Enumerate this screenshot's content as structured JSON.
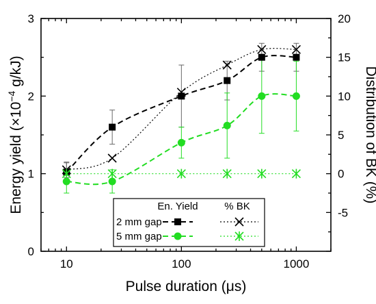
{
  "chart_data": {
    "type": "line",
    "xlabel": "Pulse duration (μs)",
    "x_scale": "log",
    "xlim": [
      6,
      2000
    ],
    "x_ticks": [
      10,
      100,
      1000
    ],
    "x_tick_labels": [
      "10",
      "100",
      "1000"
    ],
    "y_left": {
      "label_parts": [
        "Energy yield (×10",
        "−4",
        " g/kJ)"
      ],
      "lim": [
        0,
        3
      ],
      "ticks": [
        0,
        1,
        2,
        3
      ],
      "tick_labels": [
        "0",
        "1",
        "2",
        "3"
      ]
    },
    "y_right": {
      "label": "Distribution of BK (%)",
      "lim": [
        -10,
        20
      ],
      "ticks": [
        -5,
        0,
        5,
        10,
        15,
        20
      ],
      "tick_labels": [
        "-5",
        "0",
        "5",
        "10",
        "15",
        "20"
      ]
    },
    "x": [
      10,
      25,
      100,
      250,
      500,
      1000
    ],
    "series": [
      {
        "key": "yield-2mm",
        "axis": "left",
        "color": "#000000",
        "marker": "square",
        "line": "dash",
        "values": [
          1.02,
          1.6,
          2.0,
          2.2,
          2.5,
          2.5
        ],
        "error": [
          0.12,
          0.22,
          0.4,
          0.25,
          0.18,
          0.18
        ]
      },
      {
        "key": "yield-5mm",
        "axis": "left",
        "color": "#22dd22",
        "marker": "circle",
        "line": "dash",
        "values": [
          0.9,
          0.9,
          1.4,
          1.62,
          2.0,
          2.0
        ],
        "error": [
          0.15,
          0.15,
          0.2,
          0.42,
          0.48,
          0.45
        ]
      },
      {
        "key": "bk-2mm",
        "axis": "right",
        "color": "#000000",
        "marker": "x",
        "line": "dot",
        "values": [
          0.5,
          2.0,
          10.5,
          14.0,
          16.0,
          16.0
        ],
        "error": [
          1.0,
          0,
          0,
          0,
          0,
          0
        ]
      },
      {
        "key": "bk-5mm",
        "axis": "right",
        "color": "#22dd22",
        "marker": "asterisk",
        "line": "dot",
        "values": [
          0,
          0,
          0,
          0,
          0,
          0
        ],
        "error": [
          0,
          0,
          0,
          0,
          0,
          0
        ]
      }
    ],
    "legend": {
      "placement": "bottom-center",
      "header_yield": "En. Yield",
      "header_bk": "% BK",
      "rows": [
        {
          "label": "2 mm gap",
          "yield_series": "yield-2mm",
          "bk_series": "bk-2mm"
        },
        {
          "label": "5 mm gap",
          "yield_series": "yield-5mm",
          "bk_series": "bk-5mm"
        }
      ]
    }
  }
}
